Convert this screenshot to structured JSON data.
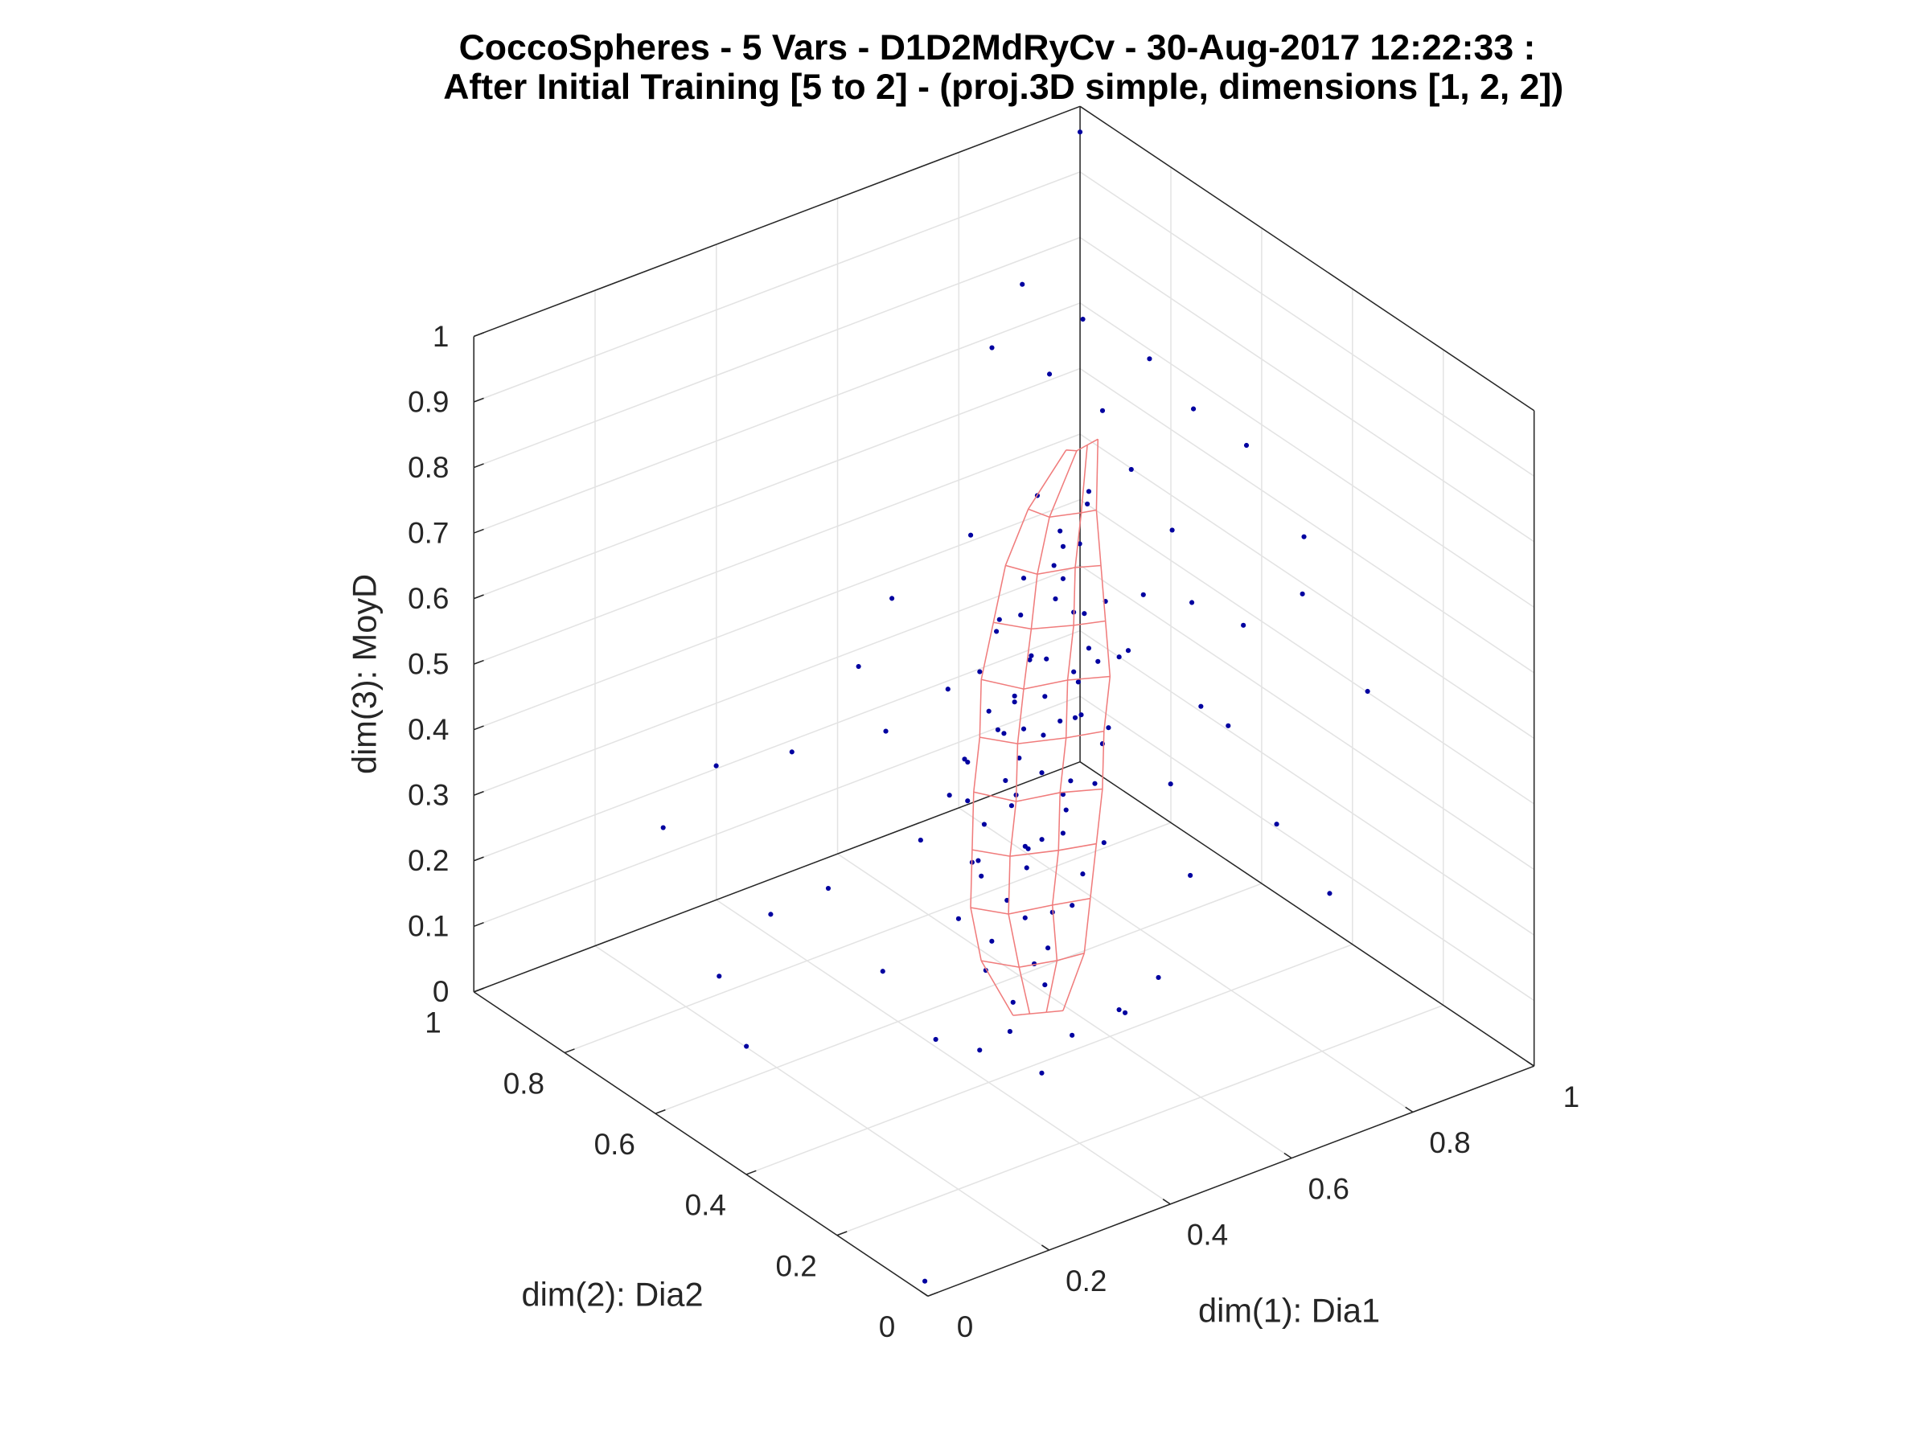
{
  "chart_data": {
    "type": "scatter3d",
    "title": [
      "CoccoSpheres - 5 Vars - D1D2MdRyCv - 30-Aug-2017 12:22:33 :",
      "After Initial Training [5 to 2] - (proj.3D simple, dimensions [1, 2, 2])"
    ],
    "xlabel": "dim(1): Dia1",
    "ylabel": "dim(2): Dia2",
    "zlabel": "dim(3): MoyD",
    "xlim": [
      0,
      1
    ],
    "ylim": [
      0,
      1
    ],
    "zlim": [
      0,
      1
    ],
    "xticks": [
      "0",
      "0.2",
      "0.4",
      "0.6",
      "0.8",
      "1"
    ],
    "yticks": [
      "0",
      "0.2",
      "0.4",
      "0.6",
      "0.8",
      "1"
    ],
    "zticks": [
      "0",
      "0.1",
      "0.2",
      "0.3",
      "0.4",
      "0.5",
      "0.6",
      "0.7",
      "0.8",
      "0.9",
      "1"
    ],
    "grid": true,
    "colors": {
      "points": "#0000a0",
      "mesh": "#f07c7c",
      "grid": "#e3e3e3",
      "axes": "#262626"
    },
    "points": [
      [
        0.5,
        0.48,
        0.05
      ],
      [
        0.53,
        0.45,
        0.08
      ],
      [
        0.47,
        0.5,
        0.1
      ],
      [
        0.55,
        0.47,
        0.12
      ],
      [
        0.49,
        0.42,
        0.14
      ],
      [
        0.58,
        0.5,
        0.15
      ],
      [
        0.45,
        0.46,
        0.17
      ],
      [
        0.52,
        0.52,
        0.18
      ],
      [
        0.56,
        0.43,
        0.2
      ],
      [
        0.5,
        0.55,
        0.21
      ],
      [
        0.6,
        0.46,
        0.22
      ],
      [
        0.46,
        0.4,
        0.23
      ],
      [
        0.53,
        0.49,
        0.24
      ],
      [
        0.48,
        0.53,
        0.25
      ],
      [
        0.57,
        0.51,
        0.26
      ],
      [
        0.62,
        0.44,
        0.27
      ],
      [
        0.44,
        0.49,
        0.28
      ],
      [
        0.51,
        0.46,
        0.29
      ],
      [
        0.55,
        0.55,
        0.3
      ],
      [
        0.49,
        0.44,
        0.31
      ],
      [
        0.58,
        0.47,
        0.32
      ],
      [
        0.53,
        0.41,
        0.33
      ],
      [
        0.47,
        0.54,
        0.34
      ],
      [
        0.61,
        0.5,
        0.34
      ],
      [
        0.52,
        0.5,
        0.35
      ],
      [
        0.56,
        0.45,
        0.36
      ],
      [
        0.43,
        0.45,
        0.36
      ],
      [
        0.5,
        0.58,
        0.37
      ],
      [
        0.59,
        0.42,
        0.38
      ],
      [
        0.54,
        0.52,
        0.39
      ],
      [
        0.48,
        0.47,
        0.4
      ],
      [
        0.64,
        0.47,
        0.4
      ],
      [
        0.57,
        0.55,
        0.41
      ],
      [
        0.51,
        0.43,
        0.42
      ],
      [
        0.45,
        0.52,
        0.42
      ],
      [
        0.6,
        0.51,
        0.43
      ],
      [
        0.55,
        0.48,
        0.44
      ],
      [
        0.52,
        0.56,
        0.45
      ],
      [
        0.62,
        0.43,
        0.45
      ],
      [
        0.49,
        0.5,
        0.46
      ],
      [
        0.58,
        0.45,
        0.47
      ],
      [
        0.54,
        0.53,
        0.48
      ],
      [
        0.47,
        0.46,
        0.48
      ],
      [
        0.63,
        0.52,
        0.49
      ],
      [
        0.56,
        0.41,
        0.5
      ],
      [
        0.51,
        0.49,
        0.5
      ],
      [
        0.59,
        0.56,
        0.51
      ],
      [
        0.53,
        0.45,
        0.52
      ],
      [
        0.66,
        0.46,
        0.53
      ],
      [
        0.49,
        0.54,
        0.53
      ],
      [
        0.57,
        0.5,
        0.54
      ],
      [
        0.61,
        0.44,
        0.55
      ],
      [
        0.54,
        0.57,
        0.56
      ],
      [
        0.52,
        0.47,
        0.57
      ],
      [
        0.64,
        0.51,
        0.58
      ],
      [
        0.58,
        0.42,
        0.59
      ],
      [
        0.55,
        0.53,
        0.6
      ],
      [
        0.6,
        0.48,
        0.61
      ],
      [
        0.5,
        0.51,
        0.62
      ],
      [
        0.63,
        0.45,
        0.63
      ],
      [
        0.57,
        0.55,
        0.64
      ],
      [
        0.59,
        0.49,
        0.66
      ],
      [
        0.54,
        0.44,
        0.67
      ],
      [
        0.62,
        0.53,
        0.68
      ],
      [
        0.56,
        0.47,
        0.7
      ],
      [
        0.6,
        0.51,
        0.72
      ],
      [
        0.58,
        0.44,
        0.74
      ],
      [
        0.63,
        0.49,
        0.76
      ],
      [
        0.57,
        0.52,
        0.78
      ],
      [
        0.61,
        0.46,
        0.8
      ],
      [
        0.4,
        0.55,
        0.3
      ],
      [
        0.38,
        0.6,
        0.45
      ],
      [
        0.35,
        0.62,
        0.55
      ],
      [
        0.42,
        0.64,
        0.62
      ],
      [
        0.3,
        0.7,
        0.4
      ],
      [
        0.33,
        0.66,
        0.2
      ],
      [
        0.28,
        0.72,
        0.15
      ],
      [
        0.36,
        0.58,
        0.1
      ],
      [
        0.7,
        0.4,
        0.35
      ],
      [
        0.72,
        0.36,
        0.48
      ],
      [
        0.75,
        0.42,
        0.6
      ],
      [
        0.68,
        0.33,
        0.25
      ],
      [
        0.78,
        0.38,
        0.42
      ],
      [
        0.8,
        0.3,
        0.3
      ],
      [
        0.74,
        0.45,
        0.7
      ],
      [
        0.82,
        0.4,
        0.55
      ],
      [
        0.45,
        0.35,
        0.02
      ],
      [
        0.4,
        0.42,
        0.04
      ],
      [
        0.5,
        0.35,
        0.06
      ],
      [
        0.55,
        0.3,
        0.1
      ],
      [
        0.42,
        0.38,
        0.08
      ],
      [
        0.6,
        0.38,
        0.05
      ],
      [
        0.35,
        0.45,
        0.06
      ],
      [
        0.62,
        0.32,
        0.12
      ],
      [
        0.7,
        0.55,
        0.85
      ],
      [
        0.65,
        0.6,
        0.9
      ],
      [
        0.72,
        0.62,
        0.95
      ],
      [
        0.8,
        0.58,
        0.88
      ],
      [
        0.6,
        0.66,
        0.93
      ],
      [
        0.85,
        0.55,
        0.8
      ],
      [
        0.9,
        0.5,
        0.75
      ],
      [
        0.68,
        0.7,
        0.98
      ],
      [
        0.25,
        0.8,
        0.35
      ],
      [
        0.2,
        0.85,
        0.25
      ],
      [
        0.18,
        0.7,
        0.1
      ],
      [
        0.88,
        0.35,
        0.6
      ],
      [
        0.92,
        0.4,
        0.65
      ],
      [
        0.95,
        0.3,
        0.45
      ],
      [
        0.85,
        0.25,
        0.2
      ],
      [
        0.15,
        0.6,
        0.05
      ],
      [
        0.47,
        0.58,
        0.33
      ],
      [
        0.66,
        0.55,
        0.45
      ],
      [
        0.44,
        0.52,
        0.18
      ],
      [
        0.69,
        0.48,
        0.52
      ],
      [
        0.46,
        0.57,
        0.5
      ],
      [
        0.67,
        0.42,
        0.64
      ],
      [
        0.52,
        0.6,
        0.7
      ],
      [
        0.71,
        0.5,
        0.78
      ],
      [
        0.01,
        0.02,
        0.01
      ],
      [
        0.97,
        0.96,
        0.99
      ]
    ],
    "mesh": [
      [
        [
          0.5,
          0.48,
          0.03
        ],
        [
          0.52,
          0.47,
          0.03
        ],
        [
          0.54,
          0.46,
          0.03
        ],
        [
          0.56,
          0.45,
          0.03
        ]
      ],
      [
        [
          0.47,
          0.51,
          0.11
        ],
        [
          0.51,
          0.48,
          0.1
        ],
        [
          0.55,
          0.45,
          0.11
        ],
        [
          0.58,
          0.43,
          0.12
        ]
      ],
      [
        [
          0.46,
          0.52,
          0.19
        ],
        [
          0.5,
          0.49,
          0.18
        ],
        [
          0.55,
          0.46,
          0.19
        ],
        [
          0.59,
          0.43,
          0.2
        ]
      ],
      [
        [
          0.47,
          0.53,
          0.27
        ],
        [
          0.51,
          0.5,
          0.26
        ],
        [
          0.56,
          0.46,
          0.27
        ],
        [
          0.6,
          0.43,
          0.28
        ]
      ],
      [
        [
          0.48,
          0.54,
          0.35
        ],
        [
          0.52,
          0.5,
          0.34
        ],
        [
          0.57,
          0.47,
          0.35
        ],
        [
          0.61,
          0.43,
          0.36
        ]
      ],
      [
        [
          0.49,
          0.54,
          0.43
        ],
        [
          0.53,
          0.51,
          0.42
        ],
        [
          0.58,
          0.47,
          0.43
        ],
        [
          0.62,
          0.44,
          0.44
        ]
      ],
      [
        [
          0.5,
          0.55,
          0.51
        ],
        [
          0.54,
          0.51,
          0.5
        ],
        [
          0.59,
          0.48,
          0.51
        ],
        [
          0.63,
          0.44,
          0.52
        ]
      ],
      [
        [
          0.52,
          0.55,
          0.59
        ],
        [
          0.56,
          0.52,
          0.58
        ],
        [
          0.6,
          0.48,
          0.59
        ],
        [
          0.63,
          0.45,
          0.6
        ]
      ],
      [
        [
          0.54,
          0.55,
          0.67
        ],
        [
          0.57,
          0.52,
          0.66
        ],
        [
          0.61,
          0.49,
          0.67
        ],
        [
          0.63,
          0.46,
          0.68
        ]
      ],
      [
        [
          0.57,
          0.54,
          0.75
        ],
        [
          0.59,
          0.52,
          0.74
        ],
        [
          0.62,
          0.49,
          0.75
        ],
        [
          0.63,
          0.47,
          0.76
        ]
      ],
      [
        [
          0.61,
          0.51,
          0.84
        ],
        [
          0.62,
          0.5,
          0.84
        ],
        [
          0.63,
          0.49,
          0.85
        ],
        [
          0.64,
          0.48,
          0.86
        ]
      ]
    ]
  }
}
